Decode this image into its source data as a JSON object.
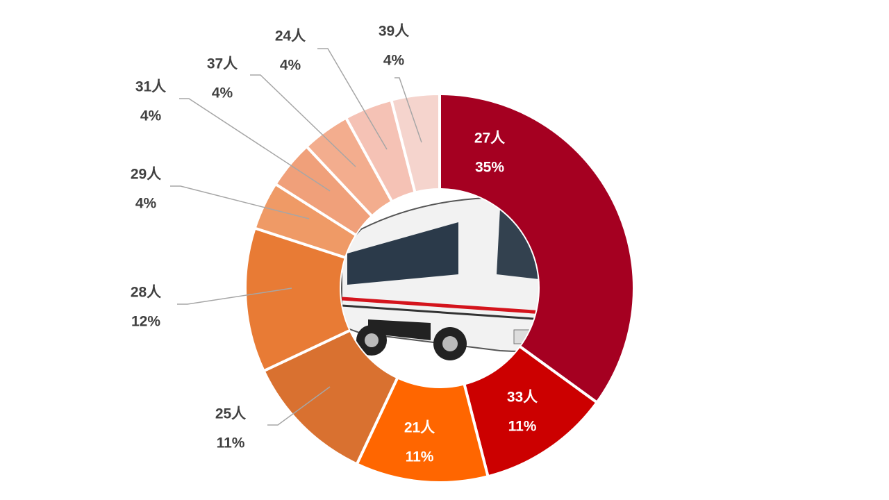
{
  "chart_data": {
    "type": "pie",
    "categories": [
      "27人",
      "33人",
      "21人",
      "25人",
      "28人",
      "29人",
      "31人",
      "37人",
      "24人",
      "39人"
    ],
    "values": [
      35,
      11,
      11,
      11,
      12,
      4,
      4,
      4,
      4,
      4
    ],
    "value_labels": [
      "35%",
      "11%",
      "11%",
      "11%",
      "12%",
      "4%",
      "4%",
      "4%",
      "4%",
      "4%"
    ],
    "colors": [
      "#a50021",
      "#cc0000",
      "#ff6600",
      "#d97130",
      "#e87b35",
      "#ef9a66",
      "#f0a07a",
      "#f3ad8e",
      "#f5c2b5",
      "#f5d4cd"
    ]
  }
}
